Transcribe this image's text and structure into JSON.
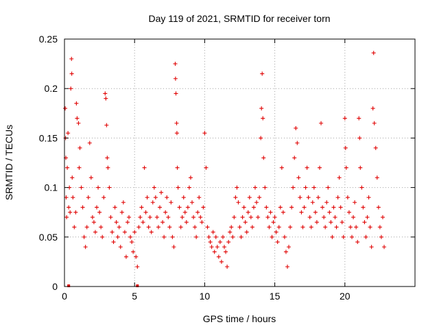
{
  "chart_data": {
    "type": "scatter",
    "title": "Day 119 of 2021, SRMTID for receiver torn",
    "xlabel": "GPS time / hours",
    "ylabel": "SRMTID / TECUs",
    "xlim": [
      0,
      25
    ],
    "ylim": [
      0,
      0.25
    ],
    "grid": true,
    "marker": "+",
    "color": "#e00000",
    "x_ticks": [
      {
        "value": 0,
        "label": "0"
      },
      {
        "value": 5,
        "label": "5"
      },
      {
        "value": 10,
        "label": "10"
      },
      {
        "value": 15,
        "label": "15"
      },
      {
        "value": 20,
        "label": "20"
      }
    ],
    "y_ticks": [
      {
        "value": 0,
        "label": "0"
      },
      {
        "value": 0.05,
        "label": "0.05"
      },
      {
        "value": 0.1,
        "label": "0.1"
      },
      {
        "value": 0.15,
        "label": "0.15"
      },
      {
        "value": 0.2,
        "label": "0.2"
      },
      {
        "value": 0.25,
        "label": "0.25"
      }
    ],
    "series": [
      {
        "name": "SRMTID",
        "points": [
          [
            0.05,
            0.18
          ],
          [
            0.08,
            0.15
          ],
          [
            0.1,
            0.13
          ],
          [
            0.12,
            0.09
          ],
          [
            0.15,
            0.07
          ],
          [
            0.2,
            0.12
          ],
          [
            0.25,
            0.155
          ],
          [
            0.3,
            0.08
          ],
          [
            0.35,
            0.1
          ],
          [
            0.4,
            0.075
          ],
          [
            0.45,
            0.2
          ],
          [
            0.5,
            0.23
          ],
          [
            0.52,
            0.215
          ],
          [
            0.55,
            0.11
          ],
          [
            0.6,
            0.09
          ],
          [
            0.7,
            0.06
          ],
          [
            0.8,
            0.075
          ],
          [
            0.85,
            0.185
          ],
          [
            0.9,
            0.17
          ],
          [
            1.0,
            0.165
          ],
          [
            1.05,
            0.12
          ],
          [
            1.1,
            0.14
          ],
          [
            1.2,
            0.1
          ],
          [
            1.3,
            0.08
          ],
          [
            1.4,
            0.05
          ],
          [
            1.5,
            0.04
          ],
          [
            1.6,
            0.06
          ],
          [
            1.7,
            0.09
          ],
          [
            1.8,
            0.145
          ],
          [
            1.9,
            0.11
          ],
          [
            2.0,
            0.07
          ],
          [
            2.1,
            0.065
          ],
          [
            2.2,
            0.055
          ],
          [
            2.3,
            0.08
          ],
          [
            2.4,
            0.1
          ],
          [
            2.5,
            0.075
          ],
          [
            2.6,
            0.06
          ],
          [
            2.7,
            0.05
          ],
          [
            2.8,
            0.09
          ],
          [
            2.9,
            0.195
          ],
          [
            2.95,
            0.19
          ],
          [
            3.0,
            0.163
          ],
          [
            3.05,
            0.13
          ],
          [
            3.1,
            0.12
          ],
          [
            3.2,
            0.1
          ],
          [
            3.3,
            0.07
          ],
          [
            3.4,
            0.055
          ],
          [
            3.5,
            0.045
          ],
          [
            3.6,
            0.08
          ],
          [
            3.7,
            0.065
          ],
          [
            3.8,
            0.05
          ],
          [
            3.9,
            0.06
          ],
          [
            4.0,
            0.04
          ],
          [
            4.1,
            0.075
          ],
          [
            4.2,
            0.085
          ],
          [
            4.3,
            0.055
          ],
          [
            4.4,
            0.03
          ],
          [
            4.5,
            0.065
          ],
          [
            4.6,
            0.07
          ],
          [
            4.7,
            0.05
          ],
          [
            4.8,
            0.045
          ],
          [
            4.9,
            0.035
          ],
          [
            5.0,
            0.055
          ],
          [
            5.1,
            0.03
          ],
          [
            5.2,
            0.02
          ],
          [
            5.3,
            0.06
          ],
          [
            5.4,
            0.07
          ],
          [
            5.5,
            0.08
          ],
          [
            5.6,
            0.065
          ],
          [
            5.7,
            0.12
          ],
          [
            5.8,
            0.075
          ],
          [
            5.9,
            0.09
          ],
          [
            6.0,
            0.06
          ],
          [
            6.1,
            0.07
          ],
          [
            6.2,
            0.055
          ],
          [
            6.3,
            0.085
          ],
          [
            6.4,
            0.1
          ],
          [
            6.5,
            0.09
          ],
          [
            6.6,
            0.07
          ],
          [
            6.7,
            0.06
          ],
          [
            6.8,
            0.08
          ],
          [
            6.9,
            0.095
          ],
          [
            7.0,
            0.065
          ],
          [
            7.1,
            0.05
          ],
          [
            7.2,
            0.075
          ],
          [
            7.3,
            0.09
          ],
          [
            7.4,
            0.07
          ],
          [
            7.5,
            0.06
          ],
          [
            7.6,
            0.085
          ],
          [
            7.7,
            0.05
          ],
          [
            7.8,
            0.04
          ],
          [
            7.9,
            0.225
          ],
          [
            7.92,
            0.21
          ],
          [
            7.95,
            0.195
          ],
          [
            8.0,
            0.165
          ],
          [
            8.02,
            0.155
          ],
          [
            8.05,
            0.12
          ],
          [
            8.1,
            0.1
          ],
          [
            8.2,
            0.08
          ],
          [
            8.3,
            0.06
          ],
          [
            8.4,
            0.07
          ],
          [
            8.5,
            0.09
          ],
          [
            8.6,
            0.075
          ],
          [
            8.7,
            0.065
          ],
          [
            8.8,
            0.08
          ],
          [
            8.9,
            0.1
          ],
          [
            9.0,
            0.11
          ],
          [
            9.1,
            0.085
          ],
          [
            9.2,
            0.07
          ],
          [
            9.3,
            0.06
          ],
          [
            9.4,
            0.05
          ],
          [
            9.5,
            0.075
          ],
          [
            9.6,
            0.09
          ],
          [
            9.7,
            0.07
          ],
          [
            9.8,
            0.065
          ],
          [
            9.9,
            0.08
          ],
          [
            10.0,
            0.155
          ],
          [
            10.1,
            0.12
          ],
          [
            10.2,
            0.06
          ],
          [
            10.3,
            0.05
          ],
          [
            10.4,
            0.045
          ],
          [
            10.5,
            0.04
          ],
          [
            10.6,
            0.055
          ],
          [
            10.7,
            0.035
          ],
          [
            10.8,
            0.05
          ],
          [
            10.9,
            0.04
          ],
          [
            11.0,
            0.03
          ],
          [
            11.1,
            0.045
          ],
          [
            11.2,
            0.025
          ],
          [
            11.3,
            0.05
          ],
          [
            11.4,
            0.04
          ],
          [
            11.5,
            0.035
          ],
          [
            11.6,
            0.02
          ],
          [
            11.7,
            0.045
          ],
          [
            11.8,
            0.055
          ],
          [
            11.9,
            0.06
          ],
          [
            12.0,
            0.05
          ],
          [
            12.1,
            0.07
          ],
          [
            12.2,
            0.09
          ],
          [
            12.3,
            0.1
          ],
          [
            12.4,
            0.085
          ],
          [
            12.5,
            0.06
          ],
          [
            12.6,
            0.05
          ],
          [
            12.7,
            0.07
          ],
          [
            12.8,
            0.08
          ],
          [
            12.9,
            0.065
          ],
          [
            13.0,
            0.055
          ],
          [
            13.1,
            0.075
          ],
          [
            13.2,
            0.09
          ],
          [
            13.3,
            0.07
          ],
          [
            13.4,
            0.06
          ],
          [
            13.5,
            0.08
          ],
          [
            13.6,
            0.1
          ],
          [
            13.7,
            0.085
          ],
          [
            13.8,
            0.07
          ],
          [
            13.9,
            0.09
          ],
          [
            14.0,
            0.15
          ],
          [
            14.05,
            0.18
          ],
          [
            14.1,
            0.215
          ],
          [
            14.15,
            0.17
          ],
          [
            14.2,
            0.13
          ],
          [
            14.3,
            0.1
          ],
          [
            14.4,
            0.08
          ],
          [
            14.5,
            0.07
          ],
          [
            14.6,
            0.06
          ],
          [
            14.7,
            0.075
          ],
          [
            14.8,
            0.05
          ],
          [
            14.9,
            0.065
          ],
          [
            15.0,
            0.07
          ],
          [
            15.1,
            0.055
          ],
          [
            15.2,
            0.045
          ],
          [
            15.3,
            0.06
          ],
          [
            15.4,
            0.08
          ],
          [
            15.5,
            0.12
          ],
          [
            15.6,
            0.075
          ],
          [
            15.7,
            0.05
          ],
          [
            15.8,
            0.035
          ],
          [
            15.9,
            0.02
          ],
          [
            16.0,
            0.04
          ],
          [
            16.1,
            0.06
          ],
          [
            16.2,
            0.08
          ],
          [
            16.3,
            0.1
          ],
          [
            16.4,
            0.13
          ],
          [
            16.5,
            0.16
          ],
          [
            16.6,
            0.145
          ],
          [
            16.7,
            0.11
          ],
          [
            16.8,
            0.09
          ],
          [
            16.9,
            0.075
          ],
          [
            17.0,
            0.06
          ],
          [
            17.1,
            0.08
          ],
          [
            17.2,
            0.1
          ],
          [
            17.3,
            0.12
          ],
          [
            17.4,
            0.09
          ],
          [
            17.5,
            0.07
          ],
          [
            17.6,
            0.06
          ],
          [
            17.7,
            0.085
          ],
          [
            17.8,
            0.1
          ],
          [
            17.9,
            0.075
          ],
          [
            18.0,
            0.065
          ],
          [
            18.1,
            0.09
          ],
          [
            18.2,
            0.12
          ],
          [
            18.3,
            0.165
          ],
          [
            18.4,
            0.08
          ],
          [
            18.5,
            0.07
          ],
          [
            18.6,
            0.06
          ],
          [
            18.7,
            0.085
          ],
          [
            18.8,
            0.1
          ],
          [
            18.9,
            0.075
          ],
          [
            19.0,
            0.065
          ],
          [
            19.1,
            0.05
          ],
          [
            19.2,
            0.08
          ],
          [
            19.3,
            0.07
          ],
          [
            19.4,
            0.06
          ],
          [
            19.5,
            0.09
          ],
          [
            19.6,
            0.11
          ],
          [
            19.7,
            0.08
          ],
          [
            19.8,
            0.065
          ],
          [
            19.9,
            0.05
          ],
          [
            20.0,
            0.17
          ],
          [
            20.05,
            0.14
          ],
          [
            20.1,
            0.12
          ],
          [
            20.2,
            0.09
          ],
          [
            20.3,
            0.075
          ],
          [
            20.4,
            0.06
          ],
          [
            20.5,
            0.05
          ],
          [
            20.6,
            0.07
          ],
          [
            20.7,
            0.085
          ],
          [
            20.8,
            0.06
          ],
          [
            20.9,
            0.045
          ],
          [
            21.0,
            0.17
          ],
          [
            21.05,
            0.15
          ],
          [
            21.1,
            0.12
          ],
          [
            21.2,
            0.1
          ],
          [
            21.3,
            0.08
          ],
          [
            21.4,
            0.065
          ],
          [
            21.5,
            0.05
          ],
          [
            21.6,
            0.07
          ],
          [
            21.7,
            0.09
          ],
          [
            21.8,
            0.06
          ],
          [
            21.9,
            0.04
          ],
          [
            22.0,
            0.18
          ],
          [
            22.05,
            0.236
          ],
          [
            22.1,
            0.165
          ],
          [
            22.2,
            0.14
          ],
          [
            22.3,
            0.11
          ],
          [
            22.4,
            0.08
          ],
          [
            22.5,
            0.06
          ],
          [
            22.6,
            0.05
          ],
          [
            22.7,
            0.07
          ],
          [
            22.8,
            0.04
          ]
        ],
        "zero_points": [
          [
            0.3,
            0
          ],
          [
            5.2,
            0
          ]
        ]
      }
    ]
  }
}
